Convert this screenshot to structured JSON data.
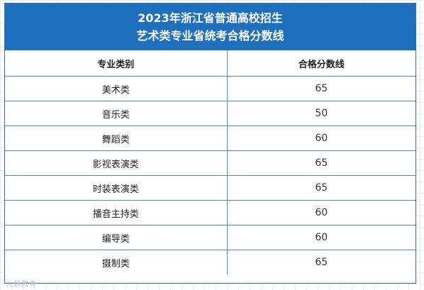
{
  "title": {
    "line1": "2023年浙江省普通高校招生",
    "line2": "艺术类专业省统考合格分数线"
  },
  "table": {
    "headers": [
      "专业类别",
      "合格分数线"
    ],
    "rows": [
      {
        "category": "美术类",
        "score": "65"
      },
      {
        "category": "音乐类",
        "score": "50"
      },
      {
        "category": "舞蹈类",
        "score": "60"
      },
      {
        "category": "影视表演类",
        "score": "65"
      },
      {
        "category": "时装表演类",
        "score": "65"
      },
      {
        "category": "播音主持类",
        "score": "60"
      },
      {
        "category": "编导类",
        "score": "60"
      },
      {
        "category": "摄制类",
        "score": "65"
      }
    ]
  },
  "watermark": "大鹏教育",
  "colors": {
    "header_bg": "#1f6fbf",
    "border": "#4a88c9"
  }
}
